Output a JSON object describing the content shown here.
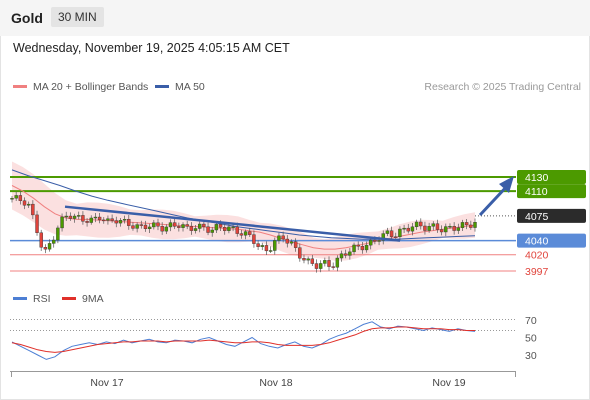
{
  "header": {
    "symbol": "Gold",
    "timeframe": "30 MIN",
    "datetime": "Wednesday, November 19, 2025 4:05:15 AM CET"
  },
  "legend": {
    "ma20": "MA 20 + Bollinger Bands",
    "ma50": "MA 50",
    "copyright": "Research © 2025 Trading Central"
  },
  "rsi_legend": {
    "rsi": "RSI",
    "ma9": "9MA"
  },
  "colors": {
    "resistance": "#4c9a00",
    "support": "#5b8bd8",
    "minor_support": "#f08080",
    "current": "#2b2b2b",
    "trendline": "#3a5ea8",
    "arrow": "#3a5ea8",
    "bollinger_fill": "#fbdddd",
    "ma20": "#f08080",
    "ma50": "#3a5ea8",
    "candle_up": "#4c9a00",
    "candle_down": "#e0433b",
    "rsi_line": "#4d7fd4",
    "rsi_ma": "#e0302a"
  },
  "chart_data": {
    "type": "candlestick",
    "symbol": "Gold",
    "timeframe": "30 MIN",
    "x_ticks": [
      "Nov 17",
      "Nov 18",
      "Nov 19"
    ],
    "y_range": [
      3985,
      4170
    ],
    "levels": [
      {
        "value": 4130,
        "label": "4130",
        "kind": "resistance"
      },
      {
        "value": 4110,
        "label": "4110",
        "kind": "resistance"
      },
      {
        "value": 4075,
        "label": "4075",
        "kind": "current"
      },
      {
        "value": 4040,
        "label": "4040",
        "kind": "pivot-support"
      },
      {
        "value": 4020,
        "label": "4020",
        "kind": "support"
      },
      {
        "value": 3997,
        "label": "3997",
        "kind": "support"
      }
    ],
    "close_path": [
      4100,
      4098,
      4092,
      4060,
      4020,
      4040,
      4065,
      4078,
      4072,
      4070,
      4068,
      4074,
      4066,
      4070,
      4066,
      4062,
      4058,
      4062,
      4060,
      4058,
      4061,
      4063,
      4056,
      4060,
      4058,
      4055,
      4060,
      4058,
      4054,
      4050,
      4045,
      4030,
      4025,
      4040,
      4045,
      4035,
      4020,
      4010,
      4005,
      4008,
      4004,
      4015,
      4025,
      4030,
      4032,
      4036,
      4045,
      4050,
      4048,
      4055,
      4060,
      4062,
      4058,
      4060,
      4055,
      4058,
      4060,
      4062,
      4065
    ],
    "ma20_path": [
      4118,
      4110,
      4100,
      4088,
      4078,
      4072,
      4070,
      4070,
      4069,
      4068,
      4067,
      4066,
      4065,
      4064,
      4063,
      4062,
      4061,
      4060,
      4059,
      4058,
      4057,
      4056,
      4054,
      4052,
      4048,
      4043,
      4038,
      4034,
      4030,
      4028,
      4028,
      4030,
      4033,
      4036,
      4040,
      4043,
      4046,
      4049,
      4052,
      4054,
      4056,
      4058,
      4060,
      4062
    ],
    "ma50_path": [
      4140,
      4132,
      4125,
      4118,
      4110,
      4103,
      4097,
      4092,
      4087,
      4082,
      4077,
      4072,
      4068,
      4064,
      4060,
      4057,
      4054,
      4051,
      4048,
      4046,
      4044,
      4043,
      4042,
      4042,
      4042,
      4043,
      4044,
      4045,
      4046,
      4047
    ],
    "trendline": {
      "from": 4088,
      "to": 4040
    },
    "forecast": "up toward 4130",
    "rsi": {
      "ticks": [
        "70",
        "50",
        "30"
      ],
      "range": [
        10,
        90
      ],
      "rsi_path": [
        45,
        40,
        35,
        30,
        25,
        28,
        35,
        40,
        42,
        44,
        42,
        45,
        43,
        47,
        44,
        46,
        48,
        45,
        44,
        47,
        46,
        44,
        48,
        50,
        46,
        42,
        40,
        45,
        50,
        43,
        40,
        38,
        42,
        45,
        40,
        38,
        42,
        48,
        52,
        55,
        60,
        65,
        68,
        62,
        60,
        63,
        62,
        60,
        58,
        61,
        59,
        57,
        60,
        58,
        57
      ],
      "ma9_path": [
        44,
        42,
        39,
        36,
        34,
        33,
        34,
        36,
        38,
        40,
        42,
        43,
        44,
        45,
        45,
        46,
        46,
        46,
        45,
        46,
        46,
        46,
        46,
        47,
        46,
        45,
        44,
        44,
        45,
        45,
        44,
        42,
        41,
        41,
        41,
        41,
        42,
        44,
        47,
        50,
        53,
        57,
        60,
        61,
        61,
        62,
        62,
        61,
        60,
        60,
        60,
        59,
        59,
        58,
        58
      ]
    }
  }
}
